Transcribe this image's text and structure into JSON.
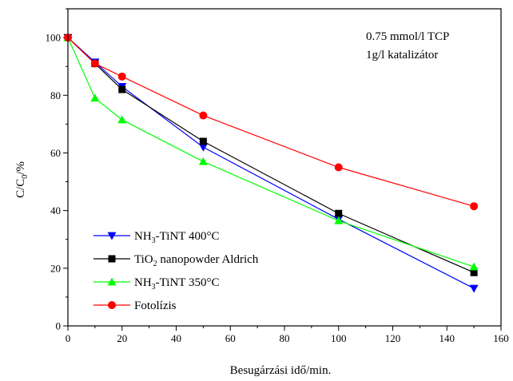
{
  "chart_data": {
    "type": "line",
    "xlabel": "Besugárzási idő/min.",
    "ylabel": {
      "main": "C/C",
      "sub": "0",
      "tail": "/%"
    },
    "xlim": [
      0,
      160
    ],
    "ylim": [
      0,
      110
    ],
    "xticks": [
      "0",
      "20",
      "40",
      "60",
      "80",
      "100",
      "120",
      "140",
      "160"
    ],
    "yticks": [
      "0",
      "20",
      "40",
      "60",
      "80",
      "100"
    ],
    "annotations": [
      "0.75 mmol/l TCP",
      "1g/l katalizátor"
    ],
    "legend_placement": "bottom-left",
    "series": [
      {
        "name": "NH3-TiNT 400°C",
        "label_parts": [
          "NH",
          "3",
          "-TiNT 400°C"
        ],
        "color": "#0000ff",
        "marker": "triangle-down",
        "x": [
          0,
          10,
          20,
          50,
          100,
          150
        ],
        "y": [
          100,
          91.5,
          83,
          62,
          37,
          13
        ]
      },
      {
        "name": "TiO2 nanopowder Aldrich",
        "label_parts": [
          "TiO",
          "2",
          " nanopowder Aldrich"
        ],
        "color": "#000000",
        "marker": "square",
        "x": [
          0,
          10,
          20,
          50,
          100,
          150
        ],
        "y": [
          100,
          91,
          82,
          64,
          39,
          18.5
        ]
      },
      {
        "name": "NH3-TiNT 350°C",
        "label_parts": [
          "NH",
          "3",
          "-TiNT 350°C"
        ],
        "color": "#00ff00",
        "marker": "triangle-up",
        "x": [
          0,
          10,
          20,
          50,
          100,
          150
        ],
        "y": [
          100,
          79,
          71.5,
          57,
          36.5,
          20.5
        ]
      },
      {
        "name": "Fotolízis",
        "label_parts": [
          "Fotolízis",
          "",
          ""
        ],
        "color": "#ff0000",
        "marker": "circle",
        "x": [
          0,
          10,
          20,
          50,
          100,
          150
        ],
        "y": [
          100,
          91,
          86.5,
          73,
          55,
          41.5
        ]
      }
    ]
  }
}
